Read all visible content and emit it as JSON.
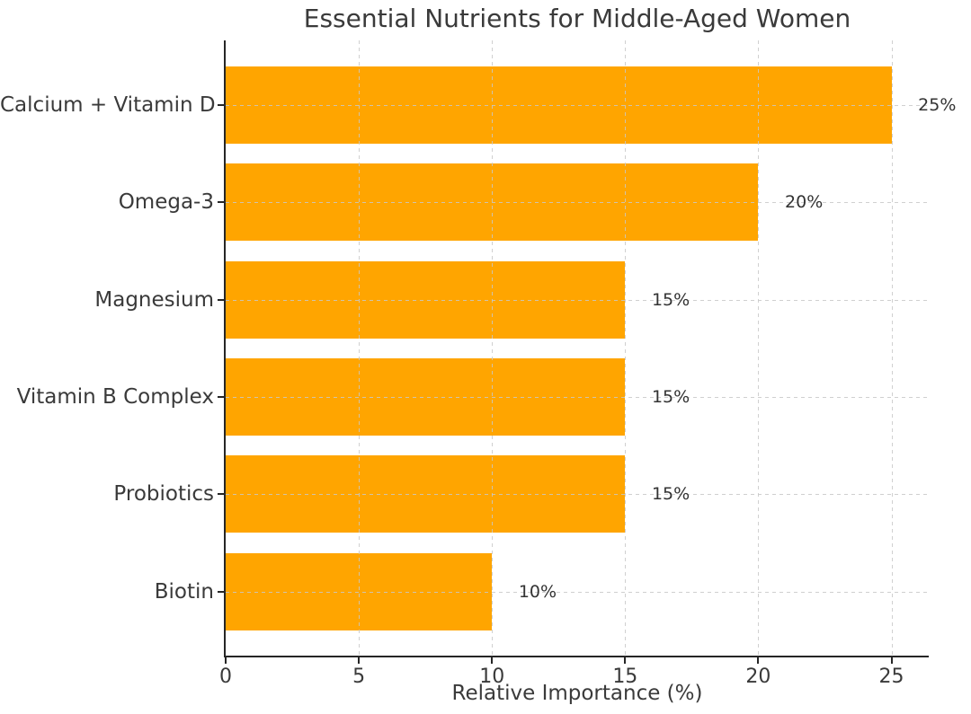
{
  "chart_data": {
    "type": "bar",
    "orientation": "horizontal",
    "title": "Essential Nutrients for Middle-Aged Women",
    "xlabel": "Relative Importance (%)",
    "ylabel": "",
    "categories": [
      "Calcium + Vitamin D",
      "Omega-3",
      "Magnesium",
      "Vitamin B Complex",
      "Probiotics",
      "Biotin"
    ],
    "values": [
      25,
      20,
      15,
      15,
      15,
      10
    ],
    "bar_labels": [
      "25%",
      "20%",
      "15%",
      "15%",
      "15%",
      "10%"
    ],
    "xticks": [
      0,
      5,
      10,
      15,
      20,
      25
    ],
    "xtick_labels": [
      "0",
      "5",
      "10",
      "15",
      "20",
      "25"
    ],
    "xlim": [
      0,
      26.4
    ],
    "grid": "dashed, vertical at xticks and horizontal at category centers",
    "legend": "none",
    "colors": {
      "bar": "#FFA500",
      "text": "#3a3a3a",
      "value_label_text": "#333333",
      "grid": "#c8c8c8",
      "spine": "#262626",
      "background": "#ffffff"
    }
  }
}
